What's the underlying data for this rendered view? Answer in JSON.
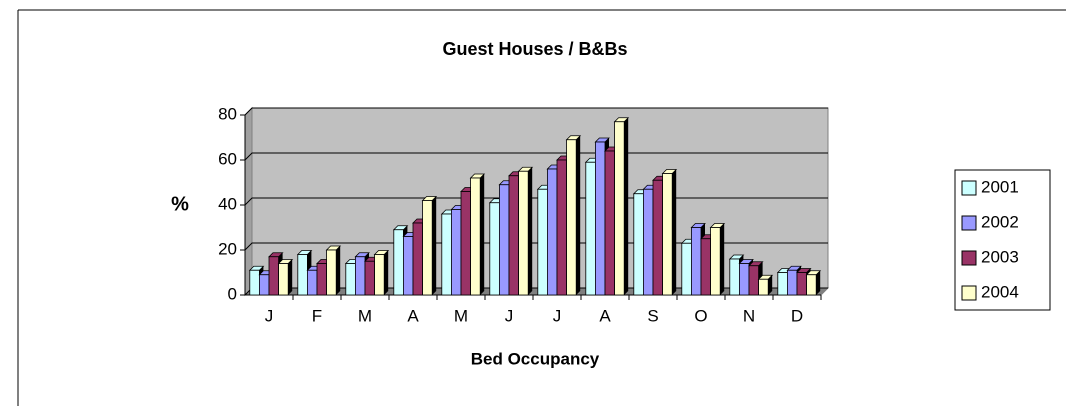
{
  "chart_data": {
    "type": "bar",
    "title": "Guest Houses / B&Bs",
    "y_label": "%",
    "x_label": "Bed Occupancy",
    "categories": [
      "J",
      "F",
      "M",
      "A",
      "M",
      "J",
      "J",
      "A",
      "S",
      "O",
      "N",
      "D"
    ],
    "series": [
      {
        "name": "2001",
        "color": "#ccffff",
        "values": [
          11,
          18,
          14,
          29,
          36,
          41,
          47,
          59,
          45,
          23,
          16,
          10
        ]
      },
      {
        "name": "2002",
        "color": "#9999ff",
        "values": [
          9,
          11,
          17,
          26,
          38,
          49,
          56,
          68,
          47,
          30,
          14,
          11
        ]
      },
      {
        "name": "2003",
        "color": "#993366",
        "values": [
          17,
          14,
          15,
          32,
          46,
          53,
          60,
          64,
          51,
          25,
          13,
          10
        ]
      },
      {
        "name": "2004",
        "color": "#ffffcc",
        "values": [
          14,
          20,
          18,
          42,
          52,
          55,
          69,
          77,
          54,
          30,
          7,
          9
        ]
      }
    ],
    "ylim": [
      0,
      80
    ],
    "yticks": [
      0,
      20,
      40,
      60,
      80
    ],
    "grid": true,
    "legend": "right"
  }
}
